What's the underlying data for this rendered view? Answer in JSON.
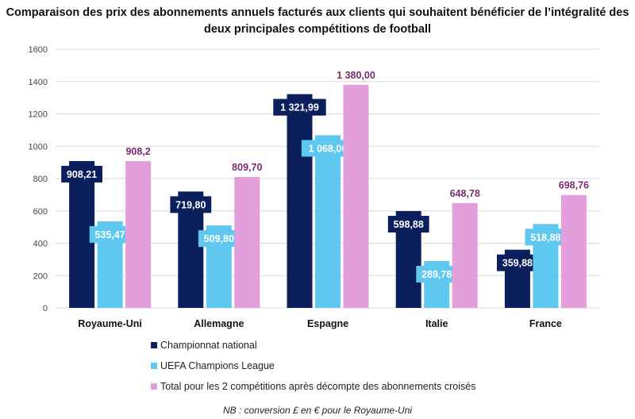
{
  "chart_data": {
    "type": "bar",
    "title": "Comparaison des prix des abonnements annuels facturés aux clients qui souhaitent bénéficier de l’intégralité des deux principales compétitions de football",
    "categories": [
      "Royaume-Uni",
      "Allemagne",
      "Espagne",
      "Italie",
      "France"
    ],
    "series": [
      {
        "name": "Championnat national",
        "color": "#0a1f5c",
        "values": [
          908.21,
          719.8,
          1321.99,
          598.88,
          359.88
        ],
        "labels": [
          "908,21",
          "719,80",
          "1 321,99",
          "598,88",
          "359,88"
        ]
      },
      {
        "name": "UEFA Champions League",
        "color": "#5ec8f0",
        "values": [
          535.47,
          509.8,
          1068.0,
          289.78,
          518.88
        ],
        "labels": [
          "535,47",
          "509,80",
          "1 068,00",
          "289,78",
          "518,88"
        ]
      },
      {
        "name": "Total pour les 2 compétitions après décompte des abonnements croisés",
        "color": "#e39fdc",
        "label_color": "#7a2a72",
        "values": [
          908.2,
          809.7,
          1380.0,
          648.78,
          698.76
        ],
        "labels": [
          "908,2",
          "809,70",
          "1 380,00",
          "648,78",
          "698,76"
        ]
      }
    ],
    "ylim": [
      0,
      1600
    ],
    "yticks": [
      0,
      200,
      400,
      600,
      800,
      1000,
      1200,
      1400,
      1600
    ],
    "grid": true,
    "legend": "bottom",
    "note": "NB : conversion £ en € pour le Royaume-Uni"
  }
}
